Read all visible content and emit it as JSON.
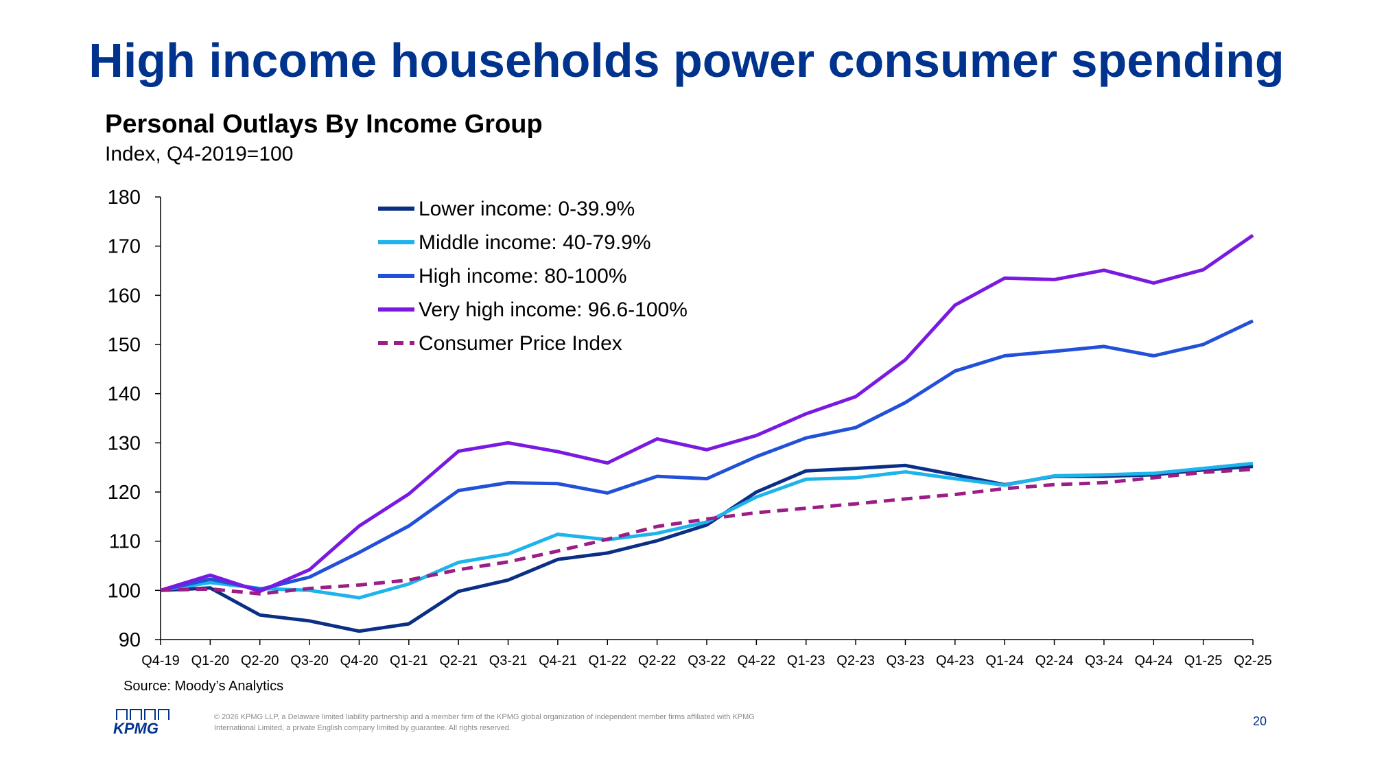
{
  "slide": {
    "title": "High income households power consumer spending",
    "source": "Source: Moody’s Analytics",
    "legal": "© 2026 KPMG LLP, a Delaware limited liability partnership and a member firm of the KPMG global organization of independent member firms affiliated with KPMG International Limited, a private English company limited by guarantee. All rights reserved.",
    "page_number": "20",
    "logo_text": "KPMG"
  },
  "chart_data": {
    "type": "line",
    "title": "Personal Outlays By Income Group",
    "subtitle": "Index, Q4-2019=100",
    "xlabel": "",
    "ylabel": "",
    "ylim": [
      90,
      180
    ],
    "yticks": [
      90,
      100,
      110,
      120,
      130,
      140,
      150,
      160,
      170,
      180
    ],
    "legend_position": "top-center",
    "categories": [
      "Q4-19",
      "Q1-20",
      "Q2-20",
      "Q3-20",
      "Q4-20",
      "Q1-21",
      "Q2-21",
      "Q3-21",
      "Q4-21",
      "Q1-22",
      "Q2-22",
      "Q3-22",
      "Q4-22",
      "Q1-23",
      "Q2-23",
      "Q3-23",
      "Q4-23",
      "Q1-24",
      "Q2-24",
      "Q3-24",
      "Q4-24",
      "Q1-25",
      "Q2-25"
    ],
    "series": [
      {
        "name": "Lower income: 0-39.9%",
        "color": "#0A2F85",
        "dashed": false,
        "values": [
          100,
          100.5,
          95,
          93.8,
          91.7,
          93.2,
          99.8,
          102.1,
          106.3,
          107.6,
          110.1,
          113.3,
          120,
          124.3,
          124.8,
          125.4,
          123.5,
          121.5,
          123.2,
          123.2,
          123.5,
          124.5,
          125.2
        ]
      },
      {
        "name": "Middle income: 40-79.9%",
        "color": "#1EB4EB",
        "dashed": false,
        "values": [
          100,
          101.6,
          100.4,
          100,
          98.5,
          101.3,
          105.7,
          107.4,
          111.4,
          110.3,
          111.6,
          113.9,
          119,
          122.6,
          122.9,
          124.1,
          122.7,
          121.4,
          123.3,
          123.5,
          123.8,
          124.8,
          125.8
        ]
      },
      {
        "name": "High income: 80-100%",
        "color": "#2350D8",
        "dashed": false,
        "values": [
          100,
          102.3,
          100.2,
          102.7,
          107.7,
          113.1,
          120.3,
          121.9,
          121.7,
          119.8,
          123.2,
          122.7,
          127.2,
          131,
          133.1,
          138.2,
          144.6,
          147.7,
          148.6,
          149.6,
          147.7,
          150,
          154.8
        ]
      },
      {
        "name": "Very high income: 96.6-100%",
        "color": "#7A1AE0",
        "dashed": false,
        "values": [
          100,
          103.1,
          99.8,
          104.2,
          113.1,
          119.6,
          128.3,
          130,
          128.2,
          125.9,
          130.8,
          128.6,
          131.5,
          135.9,
          139.4,
          146.9,
          158,
          163.5,
          163.2,
          165.1,
          162.5,
          165.2,
          172.2
        ]
      },
      {
        "name": "Consumer Price Index",
        "color": "#9C1D86",
        "dashed": true,
        "values": [
          100,
          100.3,
          99.3,
          100.4,
          101.1,
          102.1,
          104.2,
          105.8,
          108,
          110.4,
          113,
          114.5,
          115.8,
          116.7,
          117.6,
          118.6,
          119.5,
          120.7,
          121.5,
          121.9,
          122.9,
          124,
          124.6
        ]
      }
    ]
  }
}
